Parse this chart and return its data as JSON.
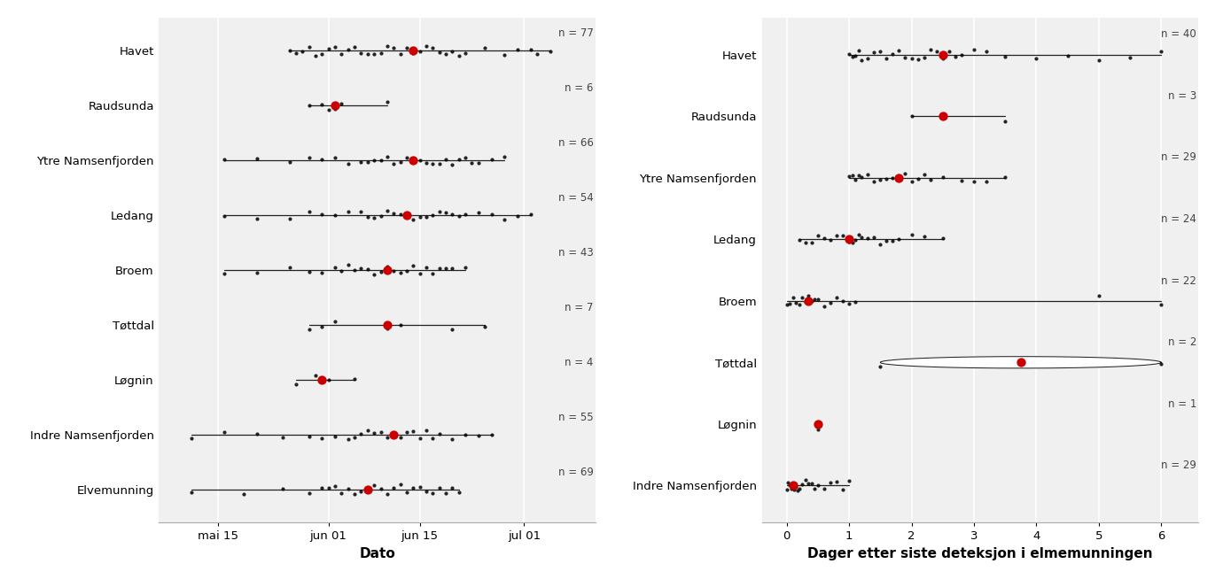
{
  "left_panel": {
    "xlabel": "Dato",
    "categories": [
      "Havet",
      "Raudsunda",
      "Ytre Namsenfjorden",
      "Ledang",
      "Broem",
      "Tøttdal",
      "Løgnin",
      "Indre Namsenfjorden",
      "Elvemunning"
    ],
    "n_values": [
      77,
      6,
      66,
      54,
      43,
      7,
      4,
      55,
      69
    ],
    "data": {
      "Havet": [
        25,
        26,
        27,
        28,
        29,
        30,
        31,
        32,
        33,
        34,
        35,
        36,
        37,
        38,
        39,
        40,
        41,
        42,
        43,
        44,
        45,
        46,
        47,
        48,
        49,
        50,
        51,
        52,
        55,
        58,
        60,
        62,
        63,
        65
      ],
      "Raudsunda": [
        28,
        30,
        31,
        32,
        33,
        40
      ],
      "Ytre Namsenfjorden": [
        15,
        20,
        25,
        28,
        30,
        32,
        34,
        36,
        37,
        38,
        39,
        40,
        41,
        42,
        43,
        44,
        45,
        46,
        47,
        48,
        49,
        50,
        51,
        52,
        53,
        54,
        56,
        58
      ],
      "Ledang": [
        15,
        20,
        25,
        28,
        30,
        32,
        34,
        36,
        37,
        38,
        39,
        40,
        41,
        42,
        43,
        44,
        45,
        46,
        47,
        48,
        49,
        50,
        51,
        52,
        54,
        56,
        58,
        60,
        62
      ],
      "Broem": [
        15,
        20,
        25,
        28,
        30,
        32,
        33,
        34,
        35,
        36,
        37,
        38,
        39,
        40,
        41,
        42,
        43,
        44,
        45,
        46,
        47,
        48,
        49,
        50,
        52
      ],
      "Tøttdal": [
        28,
        30,
        32,
        40,
        42,
        50,
        55
      ],
      "Løgnin": [
        26,
        29,
        31,
        35
      ],
      "Indre Namsenfjorden": [
        10,
        15,
        20,
        24,
        28,
        30,
        32,
        34,
        35,
        36,
        37,
        38,
        39,
        40,
        41,
        42,
        43,
        44,
        45,
        46,
        47,
        48,
        50,
        52,
        54,
        56
      ],
      "Elvemunning": [
        10,
        18,
        24,
        28,
        30,
        31,
        32,
        33,
        34,
        35,
        36,
        37,
        38,
        39,
        40,
        41,
        42,
        43,
        44,
        45,
        46,
        47,
        48,
        49,
        50,
        51
      ]
    },
    "medians": {
      "Havet": 44,
      "Raudsunda": 32,
      "Ytre Namsenfjorden": 44,
      "Ledang": 43,
      "Broem": 40,
      "Tøttdal": 40,
      "Løgnin": 30,
      "Indre Namsenfjorden": 41,
      "Elvemunning": 37
    },
    "xtick_labels": [
      "mai 15",
      "jun 01",
      "jun 15",
      "jul 01"
    ],
    "xtick_days": [
      14,
      31,
      45,
      61
    ],
    "xlim": [
      5,
      72
    ]
  },
  "right_panel": {
    "xlabel": "Dager etter siste deteksjon i elmemunningen",
    "categories": [
      "Havet",
      "Raudsunda",
      "Ytre Namsenfjorden",
      "Ledang",
      "Broem",
      "Tøttdal",
      "Løgnin",
      "Indre Namsenfjorden"
    ],
    "n_values": [
      40,
      3,
      29,
      24,
      22,
      2,
      1,
      29
    ],
    "data": {
      "Havet": [
        1.0,
        1.05,
        1.1,
        1.15,
        1.2,
        1.3,
        1.4,
        1.5,
        1.6,
        1.7,
        1.8,
        1.9,
        2.0,
        2.1,
        2.2,
        2.3,
        2.4,
        2.5,
        2.6,
        2.7,
        2.8,
        3.0,
        3.2,
        3.5,
        4.0,
        4.5,
        5.0,
        5.5,
        6.0
      ],
      "Raudsunda": [
        2.0,
        2.5,
        3.5
      ],
      "Ytre Namsenfjorden": [
        1.0,
        1.05,
        1.1,
        1.15,
        1.2,
        1.3,
        1.4,
        1.5,
        1.6,
        1.7,
        1.8,
        1.9,
        2.0,
        2.1,
        2.2,
        2.3,
        2.5,
        2.8,
        3.0,
        3.2,
        3.5
      ],
      "Ledang": [
        0.2,
        0.3,
        0.4,
        0.5,
        0.6,
        0.7,
        0.8,
        0.9,
        1.0,
        1.05,
        1.1,
        1.15,
        1.2,
        1.3,
        1.4,
        1.5,
        1.6,
        1.7,
        1.8,
        2.0,
        2.2,
        2.5
      ],
      "Broem": [
        0.0,
        0.05,
        0.1,
        0.15,
        0.2,
        0.25,
        0.3,
        0.35,
        0.4,
        0.45,
        0.5,
        0.6,
        0.7,
        0.8,
        0.9,
        1.0,
        1.1,
        5.0,
        6.0
      ],
      "Tøttdal": [
        1.5,
        6.0
      ],
      "Løgnin": [
        0.5
      ],
      "Indre Namsenfjorden": [
        0.0,
        0.02,
        0.05,
        0.07,
        0.1,
        0.12,
        0.15,
        0.18,
        0.2,
        0.25,
        0.3,
        0.35,
        0.4,
        0.45,
        0.5,
        0.6,
        0.7,
        0.8,
        0.9,
        1.0
      ]
    },
    "medians": {
      "Havet": 2.5,
      "Raudsunda": 2.5,
      "Ytre Namsenfjorden": 1.8,
      "Ledang": 1.0,
      "Broem": 0.35,
      "Tøttdal": 3.75,
      "Løgnin": 0.5,
      "Indre Namsenfjorden": 0.1
    },
    "xlim": [
      -0.4,
      6.6
    ],
    "xtick_vals": [
      0,
      1,
      2,
      3,
      4,
      5,
      6
    ]
  },
  "bg_color": "#f0f0f0",
  "violin_facecolor": "white",
  "violin_edgecolor": "#222222",
  "dot_color": "black",
  "median_color": "#cc0000",
  "grid_color": "white",
  "n_label_color": "#444444"
}
